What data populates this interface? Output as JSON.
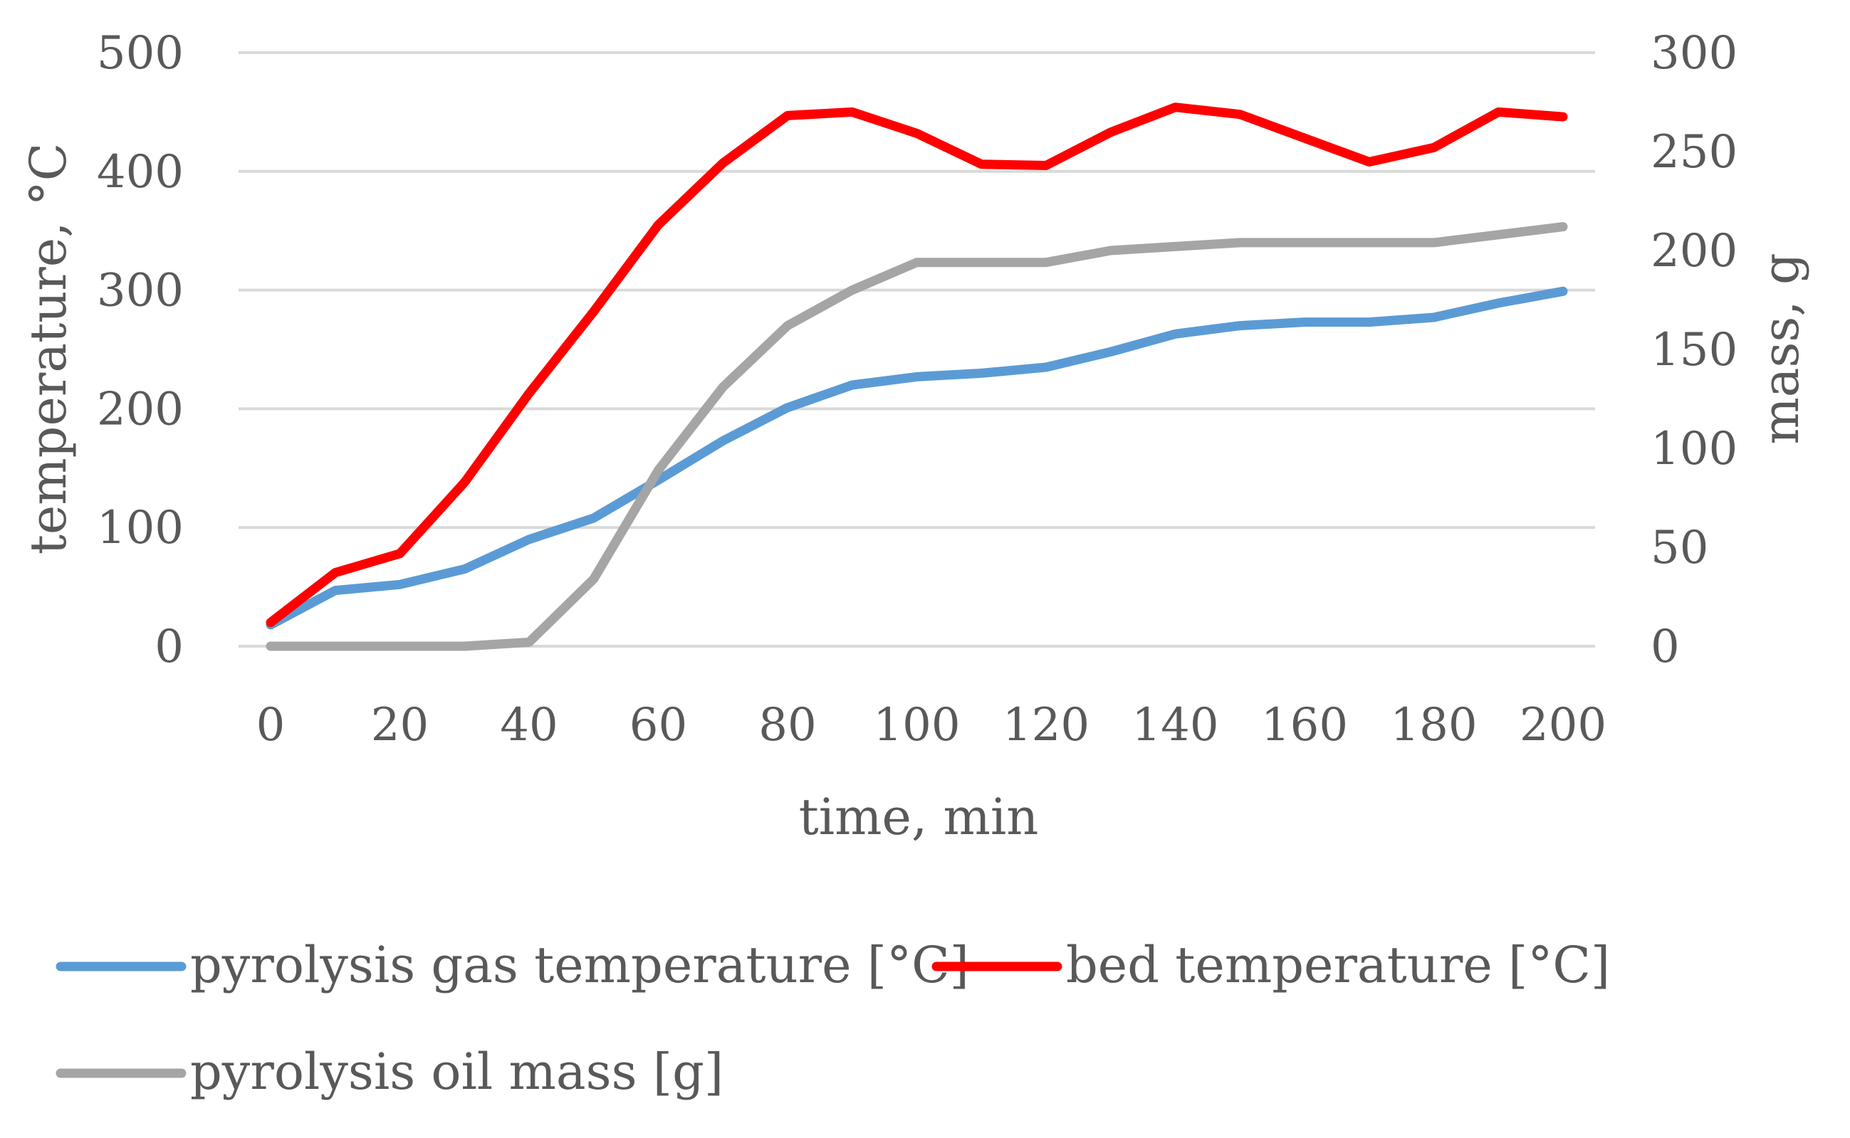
{
  "chart_data": {
    "type": "line",
    "title": "",
    "xlabel": "time, min",
    "ylabel": "temperature, °C",
    "y2label": "mass, g",
    "x": [
      0,
      10,
      20,
      30,
      40,
      50,
      60,
      70,
      80,
      90,
      100,
      110,
      120,
      130,
      140,
      150,
      160,
      170,
      180,
      190,
      200
    ],
    "xlim": [
      0,
      200
    ],
    "xticks": [
      0,
      20,
      40,
      60,
      80,
      100,
      120,
      140,
      160,
      180,
      200
    ],
    "ylim": [
      0,
      500
    ],
    "yticks": [
      0,
      100,
      200,
      300,
      400,
      500
    ],
    "y2lim": [
      0,
      300
    ],
    "y2ticks": [
      0,
      50,
      100,
      150,
      200,
      250,
      300
    ],
    "grid": true,
    "legend_position": "bottom",
    "series": [
      {
        "name": "pyrolysis gas temperature [°C]",
        "axis": "left",
        "color": "#5B9BD5",
        "values": [
          18,
          47,
          52,
          65,
          90,
          108,
          140,
          173,
          201,
          220,
          227,
          230,
          235,
          248,
          263,
          270,
          273,
          273,
          277,
          289,
          299
        ]
      },
      {
        "name": "bed temperature [°C]",
        "axis": "left",
        "color": "#FF0000",
        "values": [
          20,
          62,
          78,
          138,
          213,
          282,
          355,
          407,
          447,
          450,
          432,
          406,
          405,
          433,
          454,
          448,
          428,
          408,
          420,
          450,
          446
        ]
      },
      {
        "name": "pyrolysis oil mass [g]",
        "axis": "right",
        "color": "#A5A5A5",
        "values": [
          0,
          0,
          0,
          0,
          2,
          34,
          89,
          131,
          162,
          180,
          194,
          194,
          194,
          200,
          202,
          204,
          204,
          204,
          204,
          208,
          212
        ]
      }
    ]
  }
}
